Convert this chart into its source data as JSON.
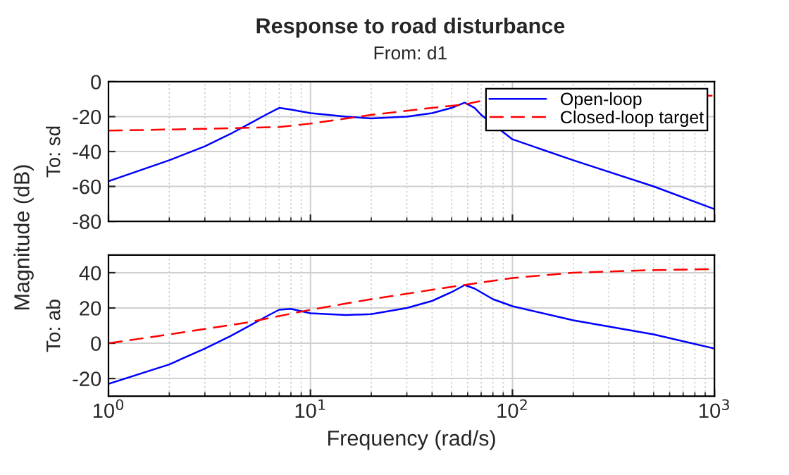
{
  "chart_data": [
    {
      "type": "line",
      "title": "Response to road disturbance",
      "subtitle": "From: d1",
      "ylabel": "To: sd",
      "annotations": [
        "Magnitude (dB)"
      ],
      "log": "x",
      "xlim": [
        1,
        1000
      ],
      "xticks": [
        {
          "value": 1,
          "label": null
        },
        {
          "value": 10,
          "label": null
        },
        {
          "value": 100,
          "label": null
        },
        {
          "value": 1000,
          "label": null
        }
      ],
      "ylim": [
        -80,
        0
      ],
      "yticks": [
        -80,
        -60,
        -40,
        -20,
        0
      ],
      "tick_labels": "y",
      "grid": true,
      "legend": "top right",
      "series": [
        {
          "name": "Open-loop",
          "color": "#0000ff",
          "line_style": "solid",
          "x": [
            1,
            2,
            3,
            4,
            5,
            6,
            7,
            8,
            10,
            15,
            20,
            30,
            40,
            50,
            58,
            65,
            70,
            100,
            200,
            500,
            1000
          ],
          "values": [
            -57,
            -45,
            -37,
            -30,
            -24,
            -19,
            -15,
            -16,
            -18,
            -20,
            -21,
            -20,
            -18,
            -15,
            -12,
            -15,
            -19,
            -33,
            -45,
            -60,
            -73
          ]
        },
        {
          "name": "Closed-loop target",
          "color": "#ff0000",
          "line_style": "dashed",
          "x": [
            1,
            3,
            7,
            10,
            20,
            40,
            58,
            70,
            1000
          ],
          "values": [
            -28,
            -27,
            -26,
            -24,
            -19,
            -15,
            -13,
            -11,
            -8
          ]
        }
      ]
    },
    {
      "type": "line",
      "ylabel": "To: ab",
      "xlabel": "Frequency (rad/s)",
      "log": "x",
      "xlim": [
        1,
        1000
      ],
      "xticks": [
        {
          "value": 1,
          "label": "10$^{0}$"
        },
        {
          "value": 10,
          "label": "10$^{1}$"
        },
        {
          "value": 100,
          "label": "10$^{2}$"
        },
        {
          "value": 1000,
          "label": "10$^{3}$"
        }
      ],
      "ylim": [
        -30,
        50
      ],
      "yticks": [
        -20,
        0,
        20,
        40
      ],
      "grid": true,
      "series": [
        {
          "color": "#0000ff",
          "line_style": "solid",
          "x": [
            1,
            2,
            3,
            4,
            5,
            6,
            7,
            8,
            10,
            15,
            20,
            30,
            40,
            50,
            58,
            65,
            80,
            100,
            200,
            500,
            1000
          ],
          "values": [
            -23,
            -12,
            -3,
            4,
            10,
            15,
            19,
            19.5,
            17,
            16,
            16.5,
            20,
            24,
            29,
            33,
            31,
            25,
            21,
            13,
            5,
            -3
          ]
        },
        {
          "color": "#ff0000",
          "line_style": "dashed",
          "x": [
            1,
            2,
            5,
            10,
            20,
            50,
            100,
            200,
            500,
            1000
          ],
          "values": [
            0,
            5,
            12,
            19,
            25,
            32,
            37,
            40,
            41.5,
            42
          ]
        }
      ]
    }
  ]
}
